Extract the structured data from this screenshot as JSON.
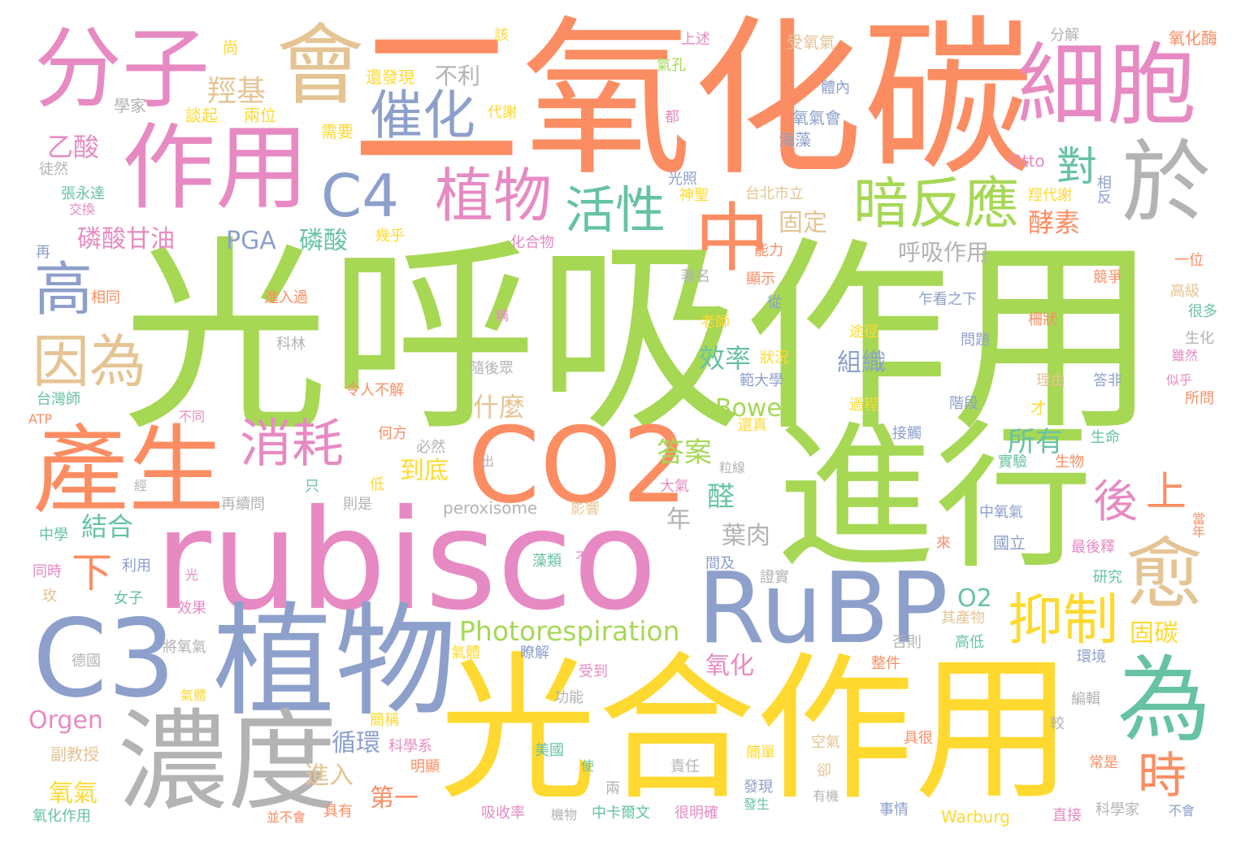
{
  "palette": {
    "orange": "#fc8d62",
    "green": "#a6d854",
    "pink": "#e78ac3",
    "blue": "#8da0cb",
    "yellow": "#ffd92f",
    "tan": "#e5c494",
    "gray": "#b3b3b3",
    "teal": "#66c2a5"
  },
  "words": [
    {
      "text": "光呼吸作用",
      "color": "green"
    },
    {
      "text": "二氧化碳",
      "color": "orange"
    },
    {
      "text": "光合作用",
      "color": "yellow"
    },
    {
      "text": "rubisco",
      "color": "pink"
    },
    {
      "text": "進行",
      "color": "green"
    },
    {
      "text": "植物",
      "color": "blue"
    },
    {
      "text": "濃度",
      "color": "gray"
    },
    {
      "text": "CO2",
      "color": "orange"
    },
    {
      "text": "C3",
      "color": "blue"
    },
    {
      "text": "RuBP",
      "color": "blue"
    },
    {
      "text": "產生",
      "color": "orange"
    },
    {
      "text": "作用",
      "color": "pink"
    },
    {
      "text": "細胞",
      "color": "pink"
    },
    {
      "text": "分子",
      "color": "pink"
    },
    {
      "text": "會",
      "color": "tan"
    },
    {
      "text": "於",
      "color": "gray"
    },
    {
      "text": "為",
      "color": "teal"
    },
    {
      "text": "中",
      "color": "orange"
    },
    {
      "text": "C4",
      "color": "blue"
    },
    {
      "text": "植物",
      "color": "pink"
    },
    {
      "text": "催化",
      "color": "blue"
    },
    {
      "text": "暗反應",
      "color": "green"
    },
    {
      "text": "活性",
      "color": "teal"
    },
    {
      "text": "消耗",
      "color": "pink"
    },
    {
      "text": "因為",
      "color": "tan"
    },
    {
      "text": "高",
      "color": "blue"
    },
    {
      "text": "愈",
      "color": "tan"
    },
    {
      "text": "抑制",
      "color": "yellow"
    },
    {
      "text": "後",
      "color": "pink"
    },
    {
      "text": "上",
      "color": "orange"
    },
    {
      "text": "時",
      "color": "orange"
    },
    {
      "text": "下",
      "color": "orange"
    },
    {
      "text": "對",
      "color": "teal"
    },
    {
      "text": "Photorespiration",
      "color": "green"
    },
    {
      "text": "羥基",
      "color": "tan"
    },
    {
      "text": "不利",
      "color": "gray"
    },
    {
      "text": "乙酸",
      "color": "pink"
    },
    {
      "text": "磷酸甘油",
      "color": "pink"
    },
    {
      "text": "PGA",
      "color": "blue"
    },
    {
      "text": "磷酸",
      "color": "teal"
    },
    {
      "text": "固定",
      "color": "tan"
    },
    {
      "text": "酵素",
      "color": "orange"
    },
    {
      "text": "呼吸作用",
      "color": "gray"
    },
    {
      "text": "效率",
      "color": "teal"
    },
    {
      "text": "組織",
      "color": "blue"
    },
    {
      "text": "什麼",
      "color": "tan"
    },
    {
      "text": "Bowes",
      "color": "green"
    },
    {
      "text": "答案",
      "color": "green"
    },
    {
      "text": "到底",
      "color": "yellow"
    },
    {
      "text": "醛",
      "color": "teal"
    },
    {
      "text": "所有",
      "color": "teal"
    },
    {
      "text": "結合",
      "color": "teal"
    },
    {
      "text": "年",
      "color": "gray"
    },
    {
      "text": "葉肉",
      "color": "gray"
    },
    {
      "text": "O2",
      "color": "teal"
    },
    {
      "text": "固碳",
      "color": "yellow"
    },
    {
      "text": "氧化",
      "color": "pink"
    },
    {
      "text": "循環",
      "color": "blue"
    },
    {
      "text": "進入",
      "color": "tan"
    },
    {
      "text": "氧氣",
      "color": "yellow"
    },
    {
      "text": "第一",
      "color": "orange"
    },
    {
      "text": "Orgen",
      "color": "pink"
    },
    {
      "text": "peroxisome",
      "color": "gray"
    },
    {
      "text": "尚",
      "color": "yellow"
    },
    {
      "text": "學家",
      "color": "gray"
    },
    {
      "text": "談起",
      "color": "yellow"
    },
    {
      "text": "兩位",
      "color": "yellow"
    },
    {
      "text": "還發現",
      "color": "yellow"
    },
    {
      "text": "需要",
      "color": "yellow"
    },
    {
      "text": "代謝",
      "color": "yellow"
    },
    {
      "text": "該",
      "color": "yellow"
    },
    {
      "text": "氣孔",
      "color": "green"
    },
    {
      "text": "都",
      "color": "pink"
    },
    {
      "text": "上述",
      "color": "pink"
    },
    {
      "text": "受氧氣",
      "color": "tan"
    },
    {
      "text": "體內",
      "color": "blue"
    },
    {
      "text": "氧氣會",
      "color": "blue"
    },
    {
      "text": "海藻",
      "color": "blue"
    },
    {
      "text": "分解",
      "color": "gray"
    },
    {
      "text": "氧化酶",
      "color": "orange"
    },
    {
      "text": "徒然",
      "color": "gray"
    },
    {
      "text": "張永達",
      "color": "teal"
    },
    {
      "text": "交換",
      "color": "pink"
    },
    {
      "text": "光照",
      "color": "blue"
    },
    {
      "text": "神聖",
      "color": "yellow"
    },
    {
      "text": "台北市立",
      "color": "tan"
    },
    {
      "text": "Otto",
      "color": "pink"
    },
    {
      "text": "羥代謝",
      "color": "yellow"
    },
    {
      "text": "相反",
      "color": "blue"
    },
    {
      "text": "幾乎",
      "color": "yellow"
    },
    {
      "text": "化合物",
      "color": "pink"
    },
    {
      "text": "能力",
      "color": "orange"
    },
    {
      "text": "再",
      "color": "blue"
    },
    {
      "text": "相同",
      "color": "orange"
    },
    {
      "text": "進入過",
      "color": "orange"
    },
    {
      "text": "著名",
      "color": "gray"
    },
    {
      "text": "顯示",
      "color": "orange"
    },
    {
      "text": "一位",
      "color": "orange"
    },
    {
      "text": "競爭",
      "color": "orange"
    },
    {
      "text": "高級",
      "color": "tan"
    },
    {
      "text": "乍看之下",
      "color": "blue"
    },
    {
      "text": "稱",
      "color": "pink"
    },
    {
      "text": "老師",
      "color": "yellow"
    },
    {
      "text": "從",
      "color": "blue"
    },
    {
      "text": "途徑",
      "color": "yellow"
    },
    {
      "text": "柵狀",
      "color": "orange"
    },
    {
      "text": "很多",
      "color": "teal"
    },
    {
      "text": "科林",
      "color": "gray"
    },
    {
      "text": "狀況",
      "color": "yellow"
    },
    {
      "text": "問題",
      "color": "blue"
    },
    {
      "text": "生化",
      "color": "gray"
    },
    {
      "text": "雖然",
      "color": "pink"
    },
    {
      "text": "隨後眾",
      "color": "gray"
    },
    {
      "text": "範大學",
      "color": "blue"
    },
    {
      "text": "理由",
      "color": "tan"
    },
    {
      "text": "答非",
      "color": "blue"
    },
    {
      "text": "似乎",
      "color": "pink"
    },
    {
      "text": "台灣師",
      "color": "teal"
    },
    {
      "text": "令人不解",
      "color": "orange"
    },
    {
      "text": "過程",
      "color": "yellow"
    },
    {
      "text": "階段",
      "color": "blue"
    },
    {
      "text": "所問",
      "color": "orange"
    },
    {
      "text": "ATP",
      "color": "orange"
    },
    {
      "text": "不同",
      "color": "pink"
    },
    {
      "text": "還真",
      "color": "yellow"
    },
    {
      "text": "才",
      "color": "yellow"
    },
    {
      "text": "何方",
      "color": "orange"
    },
    {
      "text": "必然",
      "color": "gray"
    },
    {
      "text": "接觸",
      "color": "blue"
    },
    {
      "text": "生命",
      "color": "teal"
    },
    {
      "text": "出",
      "color": "gray"
    },
    {
      "text": "粒線",
      "color": "gray"
    },
    {
      "text": "實驗",
      "color": "teal"
    },
    {
      "text": "生物",
      "color": "orange"
    },
    {
      "text": "低",
      "color": "yellow"
    },
    {
      "text": "經",
      "color": "gray"
    },
    {
      "text": "只",
      "color": "teal"
    },
    {
      "text": "大氣",
      "color": "pink"
    },
    {
      "text": "再續問",
      "color": "gray"
    },
    {
      "text": "則是",
      "color": "gray"
    },
    {
      "text": "影響",
      "color": "tan"
    },
    {
      "text": "中氧氣",
      "color": "blue"
    },
    {
      "text": "當年",
      "color": "orange"
    },
    {
      "text": "中學",
      "color": "teal"
    },
    {
      "text": "來",
      "color": "orange"
    },
    {
      "text": "國立",
      "color": "blue"
    },
    {
      "text": "最後釋",
      "color": "pink"
    },
    {
      "text": "同時",
      "color": "pink"
    },
    {
      "text": "利用",
      "color": "blue"
    },
    {
      "text": "藻類",
      "color": "teal"
    },
    {
      "text": "不",
      "color": "pink"
    },
    {
      "text": "間及",
      "color": "blue"
    },
    {
      "text": "玫",
      "color": "tan"
    },
    {
      "text": "光",
      "color": "pink"
    },
    {
      "text": "女子",
      "color": "teal"
    },
    {
      "text": "效果",
      "color": "pink"
    },
    {
      "text": "證實",
      "color": "gray"
    },
    {
      "text": "研究",
      "color": "teal"
    },
    {
      "text": "其產物",
      "color": "tan"
    },
    {
      "text": "德國",
      "color": "gray"
    },
    {
      "text": "將氧氣",
      "color": "gray"
    },
    {
      "text": "氣體",
      "color": "yellow"
    },
    {
      "text": "瞭解",
      "color": "blue"
    },
    {
      "text": "否則",
      "color": "gray"
    },
    {
      "text": "高低",
      "color": "teal"
    },
    {
      "text": "環境",
      "color": "blue"
    },
    {
      "text": "受到",
      "color": "pink"
    },
    {
      "text": "整件",
      "color": "orange"
    },
    {
      "text": "功能",
      "color": "gray"
    },
    {
      "text": "編輯",
      "color": "gray"
    },
    {
      "text": "氣體",
      "color": "yellow"
    },
    {
      "text": "簡稱",
      "color": "yellow"
    },
    {
      "text": "科學系",
      "color": "pink"
    },
    {
      "text": "副教授",
      "color": "tan"
    },
    {
      "text": "美國",
      "color": "teal"
    },
    {
      "text": "簡單",
      "color": "yellow"
    },
    {
      "text": "空氣",
      "color": "tan"
    },
    {
      "text": "具很",
      "color": "orange"
    },
    {
      "text": "較",
      "color": "gray"
    },
    {
      "text": "明顯",
      "color": "orange"
    },
    {
      "text": "使",
      "color": "teal"
    },
    {
      "text": "責任",
      "color": "gray"
    },
    {
      "text": "卻",
      "color": "tan"
    },
    {
      "text": "常是",
      "color": "orange"
    },
    {
      "text": "兩",
      "color": "gray"
    },
    {
      "text": "發現",
      "color": "blue"
    },
    {
      "text": "有機",
      "color": "gray"
    },
    {
      "text": "氧化作用",
      "color": "teal"
    },
    {
      "text": "並不會",
      "color": "orange"
    },
    {
      "text": "具有",
      "color": "orange"
    },
    {
      "text": "吸收率",
      "color": "pink"
    },
    {
      "text": "機物",
      "color": "gray"
    },
    {
      "text": "中卡爾文",
      "color": "teal"
    },
    {
      "text": "很明確",
      "color": "pink"
    },
    {
      "text": "發生",
      "color": "teal"
    },
    {
      "text": "事情",
      "color": "blue"
    },
    {
      "text": "Warburg",
      "color": "yellow"
    },
    {
      "text": "直接",
      "color": "pink"
    },
    {
      "text": "科學家",
      "color": "gray"
    },
    {
      "text": "不會",
      "color": "blue"
    }
  ]
}
